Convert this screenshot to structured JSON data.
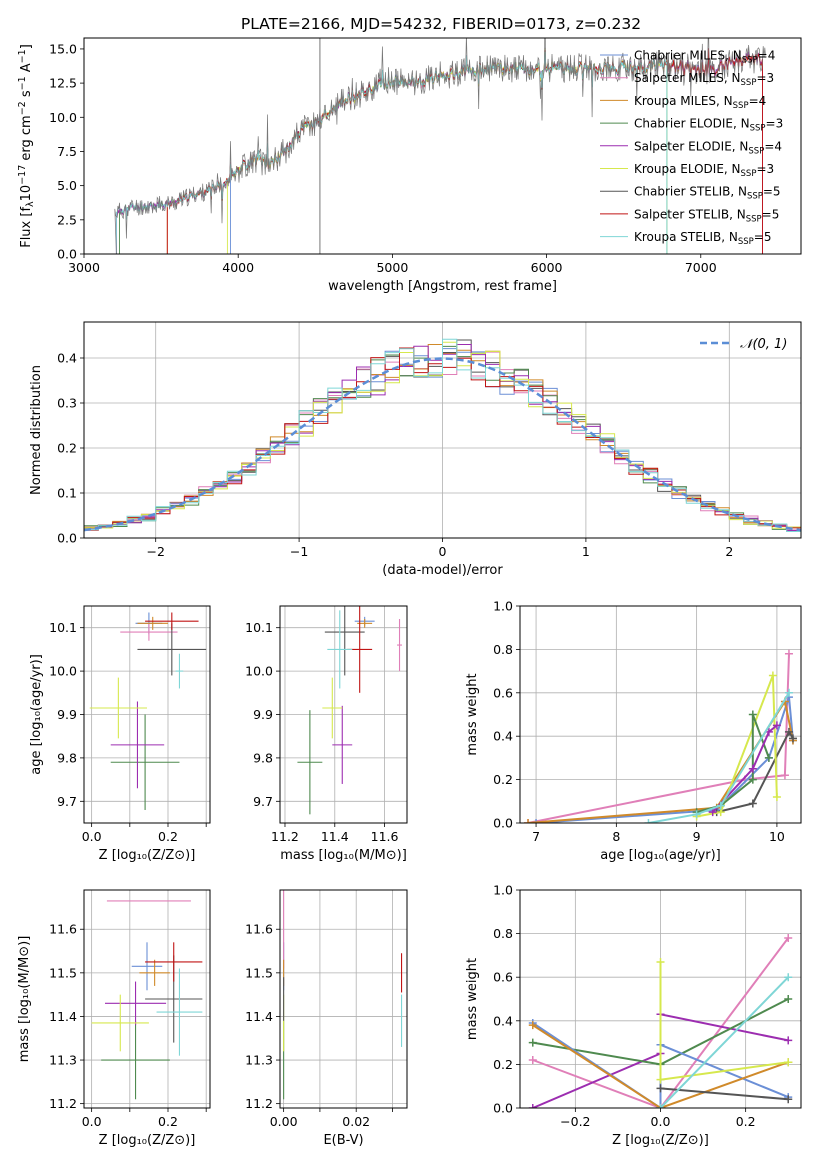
{
  "title": "PLATE=2166, MJD=54232, FIBERID=0173, z=0.232",
  "series_names": [
    {
      "pre": "Chabrier MILES, N",
      "sub": "SSP",
      "post": "=4"
    },
    {
      "pre": "Salpeter MILES, N",
      "sub": "SSP",
      "post": "=3"
    },
    {
      "pre": "Kroupa MILES, N",
      "sub": "SSP",
      "post": "=4"
    },
    {
      "pre": "Chabrier ELODIE, N",
      "sub": "SSP",
      "post": "=3"
    },
    {
      "pre": "Salpeter ELODIE, N",
      "sub": "SSP",
      "post": "=4"
    },
    {
      "pre": "Kroupa ELODIE, N",
      "sub": "SSP",
      "post": "=3"
    },
    {
      "pre": "Chabrier STELIB, N",
      "sub": "SSP",
      "post": "=5"
    },
    {
      "pre": "Salpeter STELIB, N",
      "sub": "SSP",
      "post": "=5"
    },
    {
      "pre": "Kroupa STELIB, N",
      "sub": "SSP",
      "post": "=5"
    }
  ],
  "series_colors": [
    "#6b8fd6",
    "#e07fb8",
    "#d08a2a",
    "#4f8a4f",
    "#9c2db0",
    "#d6e84d",
    "#555555",
    "#c01515",
    "#7fd6d6"
  ],
  "chart_data": [
    {
      "id": "spectrum",
      "type": "line",
      "xlabel": "wavelength [Angstrom, rest frame]",
      "ylabel_parts": {
        "pre": "Flux [f",
        "sub": "λ",
        "mid1": "10",
        "sup1": "−17",
        "mid2": " erg cm",
        "sup2": "−2",
        "mid3": " s",
        "sup3": "−1",
        "mid4": " A",
        "sup4": "−1",
        "post": "]"
      },
      "xlim": [
        3000,
        7650
      ],
      "ylim": [
        0,
        15.8
      ],
      "xticks": [
        3000,
        4000,
        5000,
        6000,
        7000
      ],
      "yticks": [
        0.0,
        2.5,
        5.0,
        7.5,
        10.0,
        12.5,
        15.0
      ],
      "xtick_labels": [
        "3000",
        "4000",
        "5000",
        "6000",
        "7000"
      ],
      "ytick_labels": [
        "0.0",
        "2.5",
        "5.0",
        "7.5",
        "10.0",
        "12.5",
        "15.0"
      ],
      "spectrum_points": [
        [
          3220,
          3.1
        ],
        [
          3300,
          3.4
        ],
        [
          3400,
          3.5
        ],
        [
          3500,
          3.6
        ],
        [
          3600,
          3.8
        ],
        [
          3700,
          4.3
        ],
        [
          3800,
          4.6
        ],
        [
          3900,
          5.1
        ],
        [
          4000,
          6.2
        ],
        [
          4100,
          6.9
        ],
        [
          4200,
          6.6
        ],
        [
          4300,
          7.5
        ],
        [
          4400,
          9.0
        ],
        [
          4500,
          9.6
        ],
        [
          4600,
          10.5
        ],
        [
          4700,
          11.3
        ],
        [
          4800,
          11.8
        ],
        [
          4900,
          12.2
        ],
        [
          5000,
          12.6
        ],
        [
          5100,
          12.5
        ],
        [
          5200,
          12.7
        ],
        [
          5300,
          13.0
        ],
        [
          5400,
          13.2
        ],
        [
          5500,
          13.4
        ],
        [
          5600,
          13.5
        ],
        [
          5700,
          13.6
        ],
        [
          5800,
          13.6
        ],
        [
          5900,
          13.4
        ],
        [
          6000,
          13.6
        ],
        [
          6100,
          13.6
        ],
        [
          6200,
          13.5
        ],
        [
          6300,
          13.7
        ],
        [
          6400,
          13.6
        ],
        [
          6500,
          13.7
        ],
        [
          6600,
          13.6
        ],
        [
          6700,
          13.9
        ],
        [
          6800,
          13.7
        ],
        [
          6900,
          13.7
        ],
        [
          7000,
          13.4
        ],
        [
          7100,
          13.5
        ],
        [
          7200,
          14.0
        ],
        [
          7300,
          14.3
        ],
        [
          7400,
          14.2
        ]
      ],
      "series_start_wavelength": [
        3950,
        3210,
        3540,
        3230,
        3210,
        3930,
        3210,
        3540,
        3210
      ],
      "series_end_wavelength": [
        7400,
        7400,
        7400,
        6780,
        7400,
        6780,
        7400,
        7400,
        6780
      ]
    },
    {
      "id": "residuals",
      "type": "histogram",
      "xlabel": "(data-model)/error",
      "ylabel": "Normed distribution",
      "xlim": [
        -2.5,
        2.5
      ],
      "ylim": [
        0,
        0.48
      ],
      "xticks": [
        -2,
        -1,
        0,
        1,
        2
      ],
      "yticks": [
        0.0,
        0.1,
        0.2,
        0.3,
        0.4
      ],
      "xtick_labels": [
        "−2",
        "−1",
        "0",
        "1",
        "2"
      ],
      "ytick_labels": [
        "0.0",
        "0.1",
        "0.2",
        "0.3",
        "0.4"
      ],
      "legend": "𝒩(0, 1)",
      "legend_position": "top-right"
    },
    {
      "id": "age_vs_Z",
      "type": "scatter",
      "xlabel": "Z [log₁₀(Z/Z⊙)]",
      "ylabel": "age  [log₁₀(age/yr)]",
      "xlim": [
        -0.02,
        0.31
      ],
      "ylim": [
        9.65,
        10.15
      ],
      "xticks": [
        0.0,
        0.1,
        0.2,
        0.3
      ],
      "yticks": [
        9.7,
        9.8,
        9.9,
        10.0,
        10.1
      ],
      "xtick_labels": [
        "0.0",
        "",
        "0.2",
        ""
      ],
      "ytick_labels": [
        "9.7",
        "9.8",
        "9.9",
        "10.0",
        "10.1"
      ],
      "points": [
        {
          "s": 0,
          "x": 0.15,
          "y": 10.11,
          "xe": 0.035,
          "ye": 0.025
        },
        {
          "s": 1,
          "x": 0.15,
          "y": 10.09,
          "xe": 0.075,
          "ye": 0.02
        },
        {
          "s": 2,
          "x": 0.16,
          "y": 10.11,
          "xe": 0.04,
          "ye": 0.015
        },
        {
          "s": 3,
          "x": 0.14,
          "y": 9.79,
          "xe": 0.09,
          "ye": 0.11
        },
        {
          "s": 4,
          "x": 0.12,
          "y": 9.83,
          "xe": 0.07,
          "ye": 0.1
        },
        {
          "s": 5,
          "x": 0.07,
          "y": 9.915,
          "xe": 0.075,
          "ye": 0.07
        },
        {
          "s": 6,
          "x": 0.21,
          "y": 10.05,
          "xe": 0.09,
          "ye": 0.06
        },
        {
          "s": 7,
          "x": 0.21,
          "y": 10.115,
          "xe": 0.07,
          "ye": 0.02
        },
        {
          "s": 8,
          "x": 0.23,
          "y": 10.0,
          "xe": 0.01,
          "ye": 0.04
        }
      ]
    },
    {
      "id": "age_vs_mass",
      "type": "scatter",
      "xlabel": "mass [log₁₀(M/M⊙)]",
      "ylabel": "",
      "xlim": [
        11.18,
        11.69
      ],
      "ylim": [
        9.65,
        10.15
      ],
      "xticks": [
        11.2,
        11.4,
        11.6
      ],
      "yticks": [
        9.7,
        9.8,
        9.9,
        10.0,
        10.1
      ],
      "xtick_labels": [
        "11.2",
        "11.4",
        "11.6"
      ],
      "ytick_labels": [
        "9.7",
        "9.8",
        "9.9",
        "10.0",
        "10.1"
      ],
      "points": [
        {
          "s": 0,
          "x": 11.52,
          "y": 10.115,
          "xe": 0.04,
          "ye": 0.01
        },
        {
          "s": 1,
          "x": 11.66,
          "y": 10.06,
          "xe": 0.01,
          "ye": 0.06
        },
        {
          "s": 2,
          "x": 11.52,
          "y": 10.11,
          "xe": 0.03,
          "ye": 0.01
        },
        {
          "s": 3,
          "x": 11.3,
          "y": 9.79,
          "xe": 0.05,
          "ye": 0.12
        },
        {
          "s": 4,
          "x": 11.43,
          "y": 9.83,
          "xe": 0.04,
          "ye": 0.09
        },
        {
          "s": 5,
          "x": 11.39,
          "y": 9.915,
          "xe": 0.04,
          "ye": 0.07
        },
        {
          "s": 6,
          "x": 11.44,
          "y": 10.09,
          "xe": 0.08,
          "ye": 0.1
        },
        {
          "s": 7,
          "x": 11.5,
          "y": 10.05,
          "xe": 0.05,
          "ye": 0.1
        },
        {
          "s": 8,
          "x": 11.42,
          "y": 10.05,
          "xe": 0.05,
          "ye": 0.09
        }
      ]
    },
    {
      "id": "weight_vs_age",
      "type": "line",
      "xlabel": "age  [log₁₀(age/yr)]",
      "ylabel": "mass weight",
      "xlim": [
        6.8,
        10.3
      ],
      "ylim": [
        0,
        1.0
      ],
      "xticks": [
        7,
        8,
        9,
        10
      ],
      "yticks": [
        0.0,
        0.2,
        0.4,
        0.6,
        0.8,
        1.0
      ],
      "xtick_labels": [
        "7",
        "8",
        "9",
        "10"
      ],
      "ytick_labels": [
        "0.0",
        "0.2",
        "0.4",
        "0.6",
        "0.8",
        "1.0"
      ],
      "series": [
        {
          "s": 1,
          "x": [
            6.9,
            9.6,
            10.1,
            10.15
          ],
          "y": [
            0.0,
            0.2,
            0.22,
            0.78
          ]
        },
        {
          "s": 0,
          "x": [
            7.0,
            9.25,
            9.9,
            10.15,
            10.2
          ],
          "y": [
            0.0,
            0.06,
            0.3,
            0.58,
            0.38
          ]
        },
        {
          "s": 2,
          "x": [
            6.9,
            9.25,
            10.1,
            10.2
          ],
          "y": [
            0.0,
            0.07,
            0.56,
            0.38
          ]
        },
        {
          "s": 6,
          "x": [
            9.25,
            9.7,
            10.15,
            10.2
          ],
          "y": [
            0.05,
            0.09,
            0.42,
            0.39
          ]
        },
        {
          "s": 5,
          "x": [
            9.0,
            9.3,
            9.95,
            10.0
          ],
          "y": [
            0.03,
            0.05,
            0.68,
            0.12
          ]
        },
        {
          "s": 3,
          "x": [
            9.0,
            9.3,
            9.7,
            9.7,
            9.9
          ],
          "y": [
            0.05,
            0.08,
            0.2,
            0.5,
            0.3
          ]
        },
        {
          "s": 4,
          "x": [
            9.2,
            9.7,
            9.9,
            10.0
          ],
          "y": [
            0.05,
            0.25,
            0.42,
            0.45
          ]
        },
        {
          "s": 8,
          "x": [
            8.4,
            9.0,
            9.3,
            10.15
          ],
          "y": [
            0.0,
            0.04,
            0.08,
            0.6
          ]
        }
      ]
    },
    {
      "id": "mass_vs_Z",
      "type": "scatter",
      "xlabel": "Z [log₁₀(Z/Z⊙)]",
      "ylabel": "mass [log₁₀(M/M⊙)]",
      "xlim": [
        -0.02,
        0.31
      ],
      "ylim": [
        11.19,
        11.69
      ],
      "xticks": [
        0.0,
        0.1,
        0.2,
        0.3
      ],
      "yticks": [
        11.2,
        11.3,
        11.4,
        11.5,
        11.6
      ],
      "xtick_labels": [
        "0.0",
        "",
        "0.2",
        ""
      ],
      "ytick_labels": [
        "11.2",
        "11.3",
        "11.4",
        "11.5",
        "11.6"
      ],
      "points": [
        {
          "s": 0,
          "x": 0.145,
          "y": 11.515,
          "xe": 0.04,
          "ye": 0.055
        },
        {
          "s": 1,
          "x": 0.15,
          "y": 11.665,
          "xe": 0.11,
          "ye": 0.0
        },
        {
          "s": 2,
          "x": 0.165,
          "y": 11.5,
          "xe": 0.04,
          "ye": 0.03
        },
        {
          "s": 3,
          "x": 0.115,
          "y": 11.3,
          "xe": 0.09,
          "ye": 0.09
        },
        {
          "s": 4,
          "x": 0.115,
          "y": 11.43,
          "xe": 0.08,
          "ye": 0.05
        },
        {
          "s": 5,
          "x": 0.075,
          "y": 11.385,
          "xe": 0.075,
          "ye": 0.065
        },
        {
          "s": 6,
          "x": 0.215,
          "y": 11.44,
          "xe": 0.075,
          "ye": 0.1
        },
        {
          "s": 7,
          "x": 0.215,
          "y": 11.525,
          "xe": 0.075,
          "ye": 0.045
        },
        {
          "s": 8,
          "x": 0.23,
          "y": 11.41,
          "xe": 0.06,
          "ye": 0.1
        }
      ]
    },
    {
      "id": "mass_vs_EBV",
      "type": "scatter",
      "xlabel": "E(B-V)",
      "ylabel": "",
      "xlim": [
        -0.001,
        0.034
      ],
      "ylim": [
        11.19,
        11.69
      ],
      "xticks": [
        0.0,
        0.01,
        0.02,
        0.03
      ],
      "yticks": [
        11.2,
        11.3,
        11.4,
        11.5,
        11.6
      ],
      "xtick_labels": [
        "0.00",
        "",
        "0.02",
        ""
      ],
      "ytick_labels": [
        "11.2",
        "11.3",
        "11.4",
        "11.5",
        "11.6"
      ],
      "points": [
        {
          "s": 0,
          "x": 0.0,
          "y": 11.515,
          "xe": 0,
          "ye": 0.055
        },
        {
          "s": 1,
          "x": 0.0,
          "y": 11.6,
          "xe": 0,
          "ye": 0.09
        },
        {
          "s": 2,
          "x": 0.0,
          "y": 11.5,
          "xe": 0,
          "ye": 0.03
        },
        {
          "s": 3,
          "x": 0.0,
          "y": 11.3,
          "xe": 0,
          "ye": 0.09
        },
        {
          "s": 5,
          "x": 0.0,
          "y": 11.385,
          "xe": 0,
          "ye": 0.065
        },
        {
          "s": 6,
          "x": 0.0,
          "y": 11.44,
          "xe": 0,
          "ye": 0.05
        },
        {
          "s": 7,
          "x": 0.0325,
          "y": 11.5,
          "xe": 0,
          "ye": 0.045
        },
        {
          "s": 8,
          "x": 0.0325,
          "y": 11.39,
          "xe": 0,
          "ye": 0.06
        }
      ]
    },
    {
      "id": "weight_vs_Z",
      "type": "line",
      "xlabel": "Z [log₁₀(Z/Z⊙)]",
      "ylabel": "mass weight",
      "xlim": [
        -0.33,
        0.33
      ],
      "ylim": [
        0,
        1.0
      ],
      "xticks": [
        -0.2,
        0.0,
        0.2
      ],
      "yticks": [
        0.0,
        0.2,
        0.4,
        0.6,
        0.8,
        1.0
      ],
      "xtick_labels": [
        "−0.2",
        "0.0",
        "0.2"
      ],
      "ytick_labels": [
        "0.0",
        "0.2",
        "0.4",
        "0.6",
        "0.8",
        "1.0"
      ],
      "series": [
        {
          "s": 1,
          "x": [
            -0.3,
            0.0,
            0.3
          ],
          "y": [
            0.22,
            0.0,
            0.78
          ]
        },
        {
          "s": 4,
          "x": [
            -0.3,
            0.0,
            0.0,
            0.3
          ],
          "y": [
            0.0,
            0.25,
            0.43,
            0.31
          ]
        },
        {
          "s": 3,
          "x": [
            -0.3,
            0.0,
            0.3
          ],
          "y": [
            0.3,
            0.2,
            0.5
          ]
        },
        {
          "s": 0,
          "x": [
            -0.3,
            0.0,
            0.0,
            0.3
          ],
          "y": [
            0.39,
            0.0,
            0.29,
            0.05
          ]
        },
        {
          "s": 2,
          "x": [
            -0.3,
            0.0,
            0.3
          ],
          "y": [
            0.38,
            0.0,
            0.21
          ]
        },
        {
          "s": 5,
          "x": [
            0.0,
            0.0,
            0.3
          ],
          "y": [
            0.67,
            0.13,
            0.21
          ]
        },
        {
          "s": 6,
          "x": [
            0.0,
            0.3
          ],
          "y": [
            0.09,
            0.04
          ]
        },
        {
          "s": 8,
          "x": [
            0.0,
            0.3
          ],
          "y": [
            0.0,
            0.6
          ]
        }
      ]
    }
  ]
}
